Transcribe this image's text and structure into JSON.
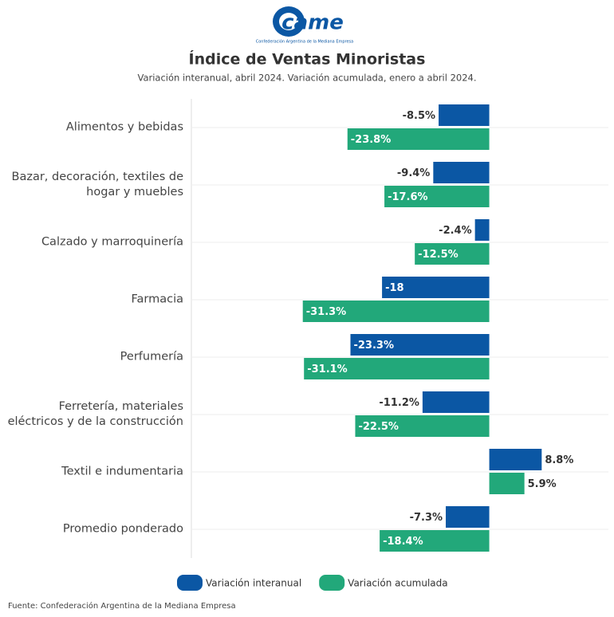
{
  "header": {
    "logo": "came",
    "logo_caption": "Confederación Argentina de la Mediana Empresa"
  },
  "chart_data": {
    "type": "hbar",
    "title": "Índice de Ventas Minoristas",
    "subtitle": "Variación interanual, abril 2024. Variación acumulada, enero a abril 2024.",
    "categories": [
      "Alimentos y bebidas",
      "Bazar, decoración, textiles de hogar y muebles",
      "Calzado y marroquinería",
      "Farmacia",
      "Perfumería",
      "Ferretería, materiales eléctricos y de la construcción",
      "Textil e indumentaria",
      "Promedio ponderado"
    ],
    "series": [
      {
        "name": "Variación interanual",
        "color": "#0b57a4",
        "values": [
          -8.5,
          -9.4,
          -2.4,
          -18,
          -23.3,
          -11.2,
          8.8,
          -7.3
        ],
        "value_labels": [
          "-8.5%",
          "-9.4%",
          "-2.4%",
          "-18",
          "-23.3%",
          "-11.2%",
          "8.8%",
          "-7.3%"
        ]
      },
      {
        "name": "Variación acumulada",
        "color": "#22a87a",
        "values": [
          -23.8,
          -17.6,
          -12.5,
          -31.3,
          -31.1,
          -22.5,
          5.9,
          -18.4
        ],
        "value_labels": [
          "-23.8%",
          "-17.6%",
          "-12.5%",
          "-31.3%",
          "-31.1%",
          "-22.5%",
          "5.9%",
          "-18.4%"
        ]
      }
    ],
    "xlim": [
      -50,
      20
    ],
    "legend": "bottom",
    "source": "Fuente: Confederación Argentina de la Mediana Empresa"
  }
}
